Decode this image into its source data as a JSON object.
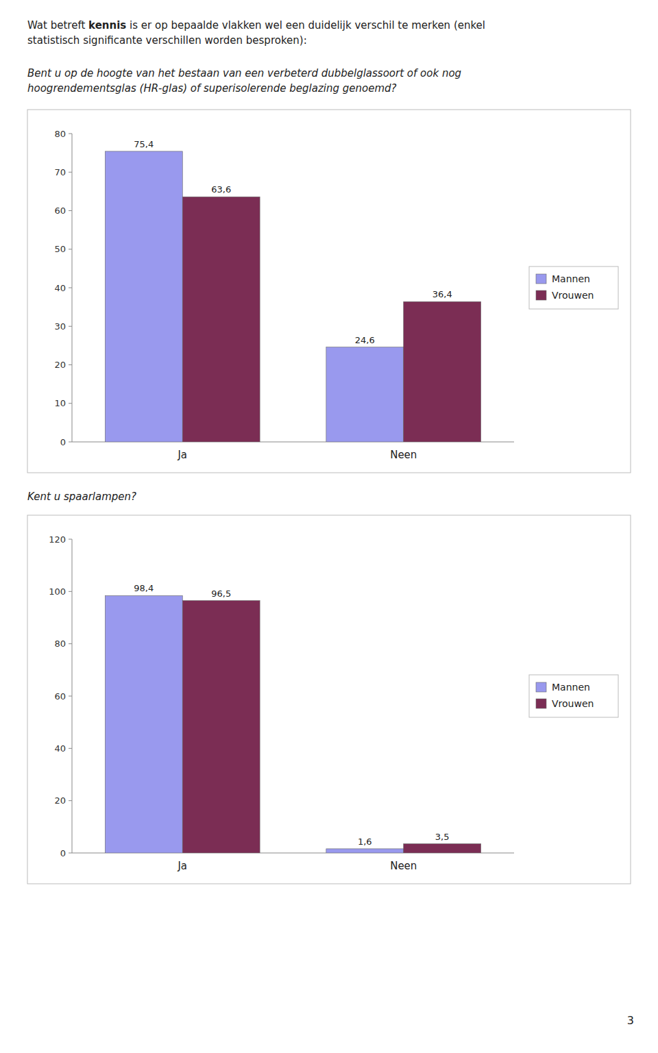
{
  "chart_data": [
    {
      "type": "bar",
      "annotations": [
        "Wat betreft ",
        "kennis",
        " is er op bepaalde vlakken wel een duidelijk verschil te merken (enkel",
        "statistisch significante verschillen worden besproken):"
      ],
      "title": "Bent u op de hoogte van het bestaan van een verbeterd dubbelglassoort of ook nog",
      "subtitle": "hoogrendementsglas (HR-glas) of superisolerende beglazing genoemd?",
      "categories": [
        "Ja",
        "Neen"
      ],
      "series": [
        {
          "name": "Mannen",
          "color": "#9999EE",
          "values": [
            75.4,
            24.6
          ],
          "value_labels": [
            "75,4",
            "24,6"
          ]
        },
        {
          "name": "Vrouwen",
          "color": "#7B2D54",
          "values": [
            63.6,
            36.4
          ],
          "value_labels": [
            "63,6",
            "36,4"
          ]
        }
      ],
      "ylim": [
        0,
        80
      ],
      "yticks": [
        0,
        10,
        20,
        30,
        40,
        50,
        60,
        70,
        80
      ],
      "grid": false,
      "legend": "right",
      "data_labels": true
    },
    {
      "type": "bar",
      "title": "Kent u spaarlampen?",
      "annotations": [
        "3"
      ],
      "categories": [
        "Ja",
        "Neen"
      ],
      "series": [
        {
          "name": "Mannen",
          "color": "#9999EE",
          "values": [
            98.4,
            1.6
          ],
          "value_labels": [
            "98,4",
            "1,6"
          ]
        },
        {
          "name": "Vrouwen",
          "color": "#7B2D54",
          "values": [
            96.5,
            3.5
          ],
          "value_labels": [
            "96,5",
            "3,5"
          ]
        }
      ],
      "ylim": [
        0,
        120
      ],
      "yticks": [
        0,
        20,
        40,
        60,
        80,
        100,
        120
      ],
      "grid": false,
      "legend": "right",
      "data_labels": true
    }
  ]
}
